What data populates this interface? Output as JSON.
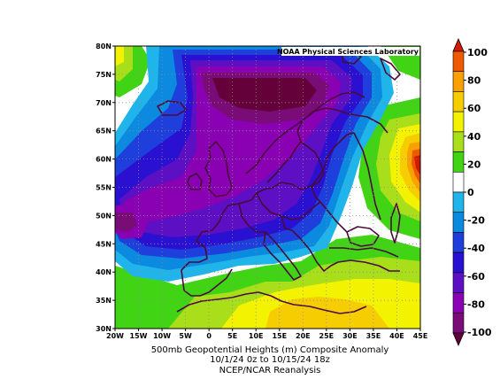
{
  "map": {
    "credit": "NOAA Physical Sciences Laboratory",
    "lat_ticks": [
      "80N",
      "75N",
      "70N",
      "65N",
      "60N",
      "55N",
      "50N",
      "45N",
      "40N",
      "35N",
      "30N"
    ],
    "lon_ticks": [
      "20W",
      "15W",
      "10W",
      "5W",
      "0",
      "5E",
      "10E",
      "15E",
      "20E",
      "25E",
      "30E",
      "35E",
      "40E",
      "45E"
    ],
    "extent": {
      "lon": [
        -20,
        45
      ],
      "lat": [
        30,
        80
      ]
    }
  },
  "colorbar": {
    "labels": [
      "100",
      "80",
      "60",
      "40",
      "20",
      "0",
      "-20",
      "-40",
      "-60",
      "-80",
      "-100"
    ],
    "range": [
      -100,
      100
    ],
    "colors": [
      "#d31a00",
      "#ee5a00",
      "#f9a100",
      "#f6cd00",
      "#f3f200",
      "#a8de1a",
      "#41d414",
      "#ffffff",
      "#1fb5ea",
      "#0b8ae0",
      "#1f3fdc",
      "#2a10d0",
      "#5d0fc4",
      "#8a00b3",
      "#7a0c78",
      "#64003a"
    ]
  },
  "caption": {
    "line1": "500mb Geopotential Heights (m)    Composite Anomaly",
    "line2": "10/1/24 0z  to 10/15/24 18z",
    "line3": "NCEP/NCAR Reanalysis"
  }
}
